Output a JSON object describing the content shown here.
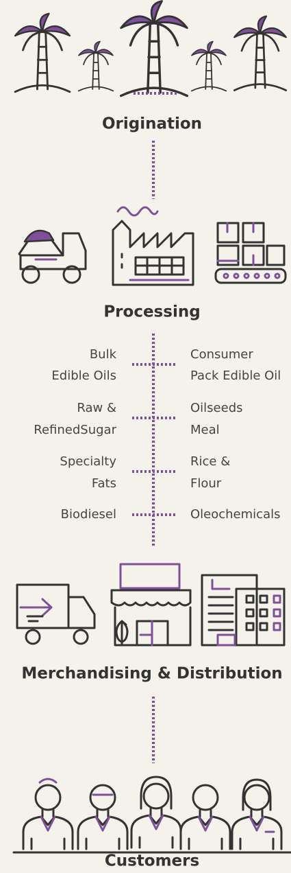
{
  "stages": [
    "Origination",
    "Processing",
    "Merchandising & Distribution",
    "Customers"
  ],
  "products": [
    {
      "left": [
        "Bulk",
        "Edible Oils"
      ],
      "right": [
        "Consumer",
        "Pack Edible Oil"
      ]
    },
    {
      "left": [
        "Raw &",
        "RefinedSugar"
      ],
      "right": [
        "Oilseeds",
        "Meal"
      ]
    },
    {
      "left": [
        "Specialty",
        "Fats"
      ],
      "right": [
        "Rice &",
        "Flour"
      ]
    },
    {
      "left": [
        "Biodiesel"
      ],
      "right": [
        "Oleochemicals"
      ]
    }
  ]
}
